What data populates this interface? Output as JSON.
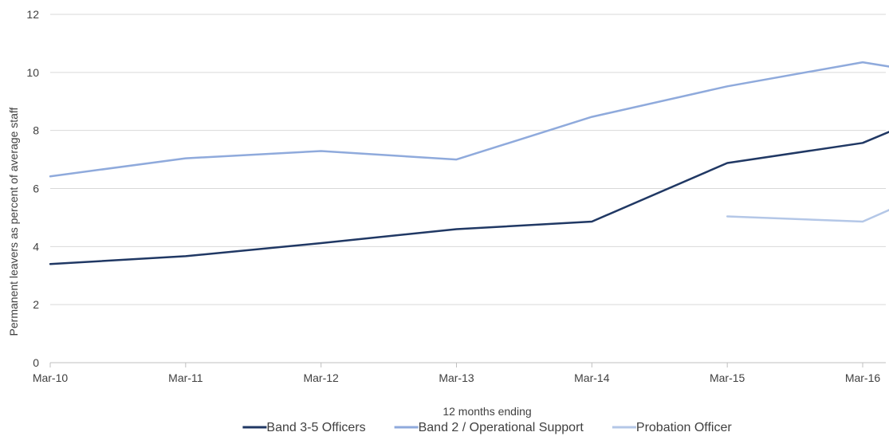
{
  "chart_data": {
    "type": "line",
    "categories": [
      "Mar-10",
      "Mar-11",
      "Mar-12",
      "Mar-13",
      "Mar-14",
      "Mar-15",
      "Mar-16"
    ],
    "xlabel": "12 months ending",
    "ylabel": "Permanent leavers as percent of average staff",
    "ylim": [
      0,
      12
    ],
    "yticks": [
      0,
      2,
      4,
      6,
      8,
      10,
      12
    ],
    "grid": true,
    "legend_position": "bottom",
    "series": [
      {
        "name": "Band 3-5 Officers",
        "color": "#203864",
        "points": [
          [
            0,
            3.4
          ],
          [
            1,
            3.67
          ],
          [
            2,
            4.12
          ],
          [
            3,
            4.6
          ],
          [
            4,
            4.86
          ],
          [
            5,
            6.88
          ],
          [
            6,
            7.57
          ],
          [
            6.2,
            7.96
          ]
        ]
      },
      {
        "name": "Band 2 / Operational Support",
        "color": "#8FAADC",
        "points": [
          [
            0,
            6.42
          ],
          [
            1,
            7.04
          ],
          [
            2,
            7.29
          ],
          [
            3,
            7.0
          ],
          [
            4,
            8.47
          ],
          [
            5,
            9.52
          ],
          [
            6,
            10.35
          ],
          [
            6.2,
            10.2
          ]
        ]
      },
      {
        "name": "Probation Officer",
        "color": "#B4C7E7",
        "points": [
          [
            5,
            5.04
          ],
          [
            6,
            4.86
          ],
          [
            6.2,
            5.27
          ]
        ]
      }
    ]
  }
}
